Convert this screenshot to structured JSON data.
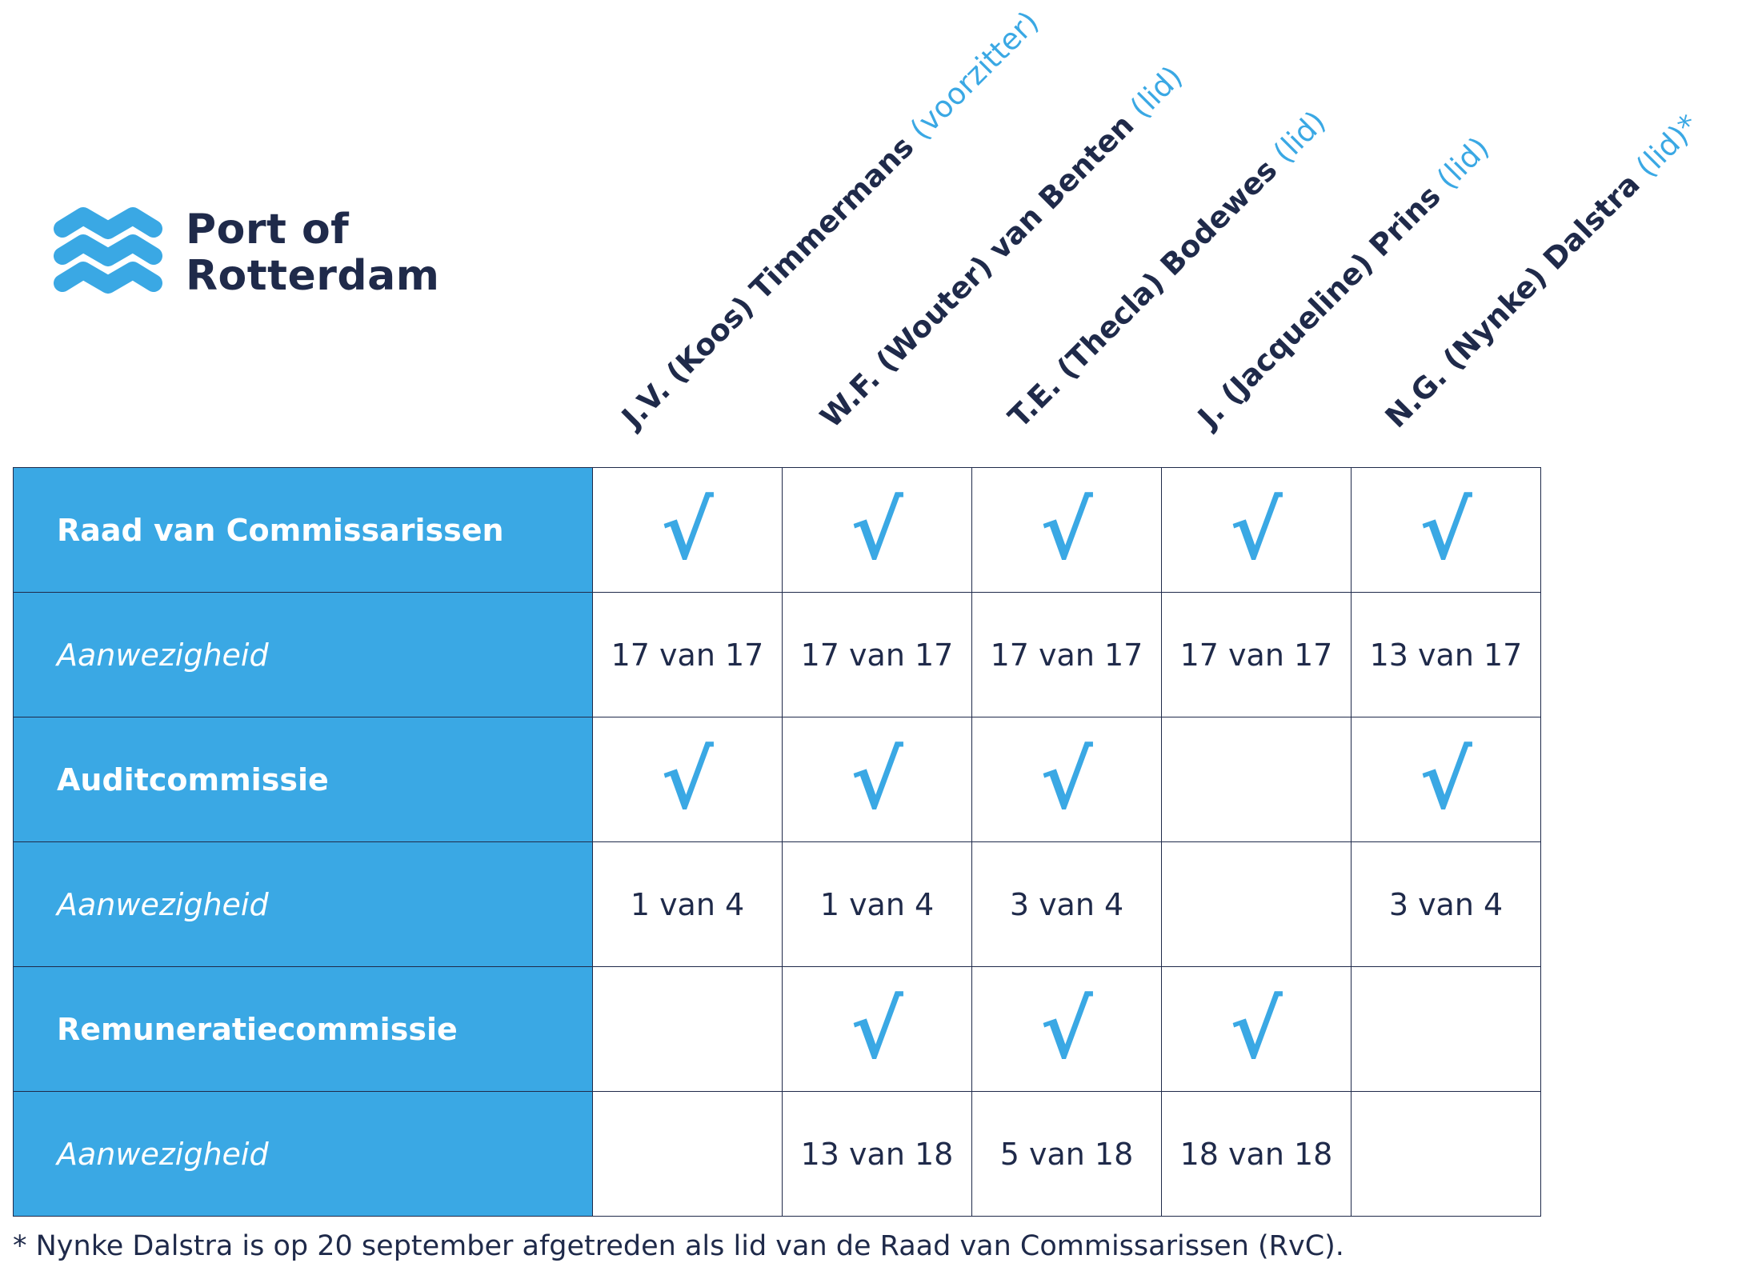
{
  "brand": {
    "line1": "Port of",
    "line2": "Rotterdam",
    "accent_color": "#3aa8e4",
    "text_color": "#1f2a4a",
    "logo_icon": "port-of-rotterdam-wave-logo"
  },
  "members": [
    {
      "name": "J.V. (Koos) Timmermans",
      "role": "(voorzitter)"
    },
    {
      "name": "W.F. (Wouter) van Benten",
      "role": "(lid)"
    },
    {
      "name": "T.E. (Thecla) Bodewes",
      "role": "(lid)"
    },
    {
      "name": "J. (Jacqueline) Prins",
      "role": "(lid)"
    },
    {
      "name": "N.G. (Nynke) Dalstra",
      "role": "(lid)*"
    }
  ],
  "check_icon": "√",
  "rows": [
    {
      "label": "Raad van Commissarissen",
      "style": "bold",
      "cells": [
        "√",
        "√",
        "√",
        "√",
        "√"
      ]
    },
    {
      "label": "Aanwezigheid",
      "style": "italic",
      "cells": [
        "17 van 17",
        "17 van 17",
        "17 van 17",
        "17 van 17",
        "13 van 17"
      ]
    },
    {
      "label": "Auditcommissie",
      "style": "bold",
      "cells": [
        "√",
        "√",
        "√",
        "",
        "√"
      ]
    },
    {
      "label": "Aanwezigheid",
      "style": "italic",
      "cells": [
        "1 van 4",
        "1 van 4",
        "3 van 4",
        "",
        "3 van 4"
      ]
    },
    {
      "label": "Remuneratiecommissie",
      "style": "bold",
      "cells": [
        "",
        "√",
        "√",
        "√",
        ""
      ]
    },
    {
      "label": "Aanwezigheid",
      "style": "italic",
      "cells": [
        "",
        "13 van 18",
        "5 van 18",
        "18 van 18",
        ""
      ]
    }
  ],
  "footnote": "* Nynke Dalstra is op 20 september afgetreden als lid van de Raad van Commissarissen (RvC)."
}
